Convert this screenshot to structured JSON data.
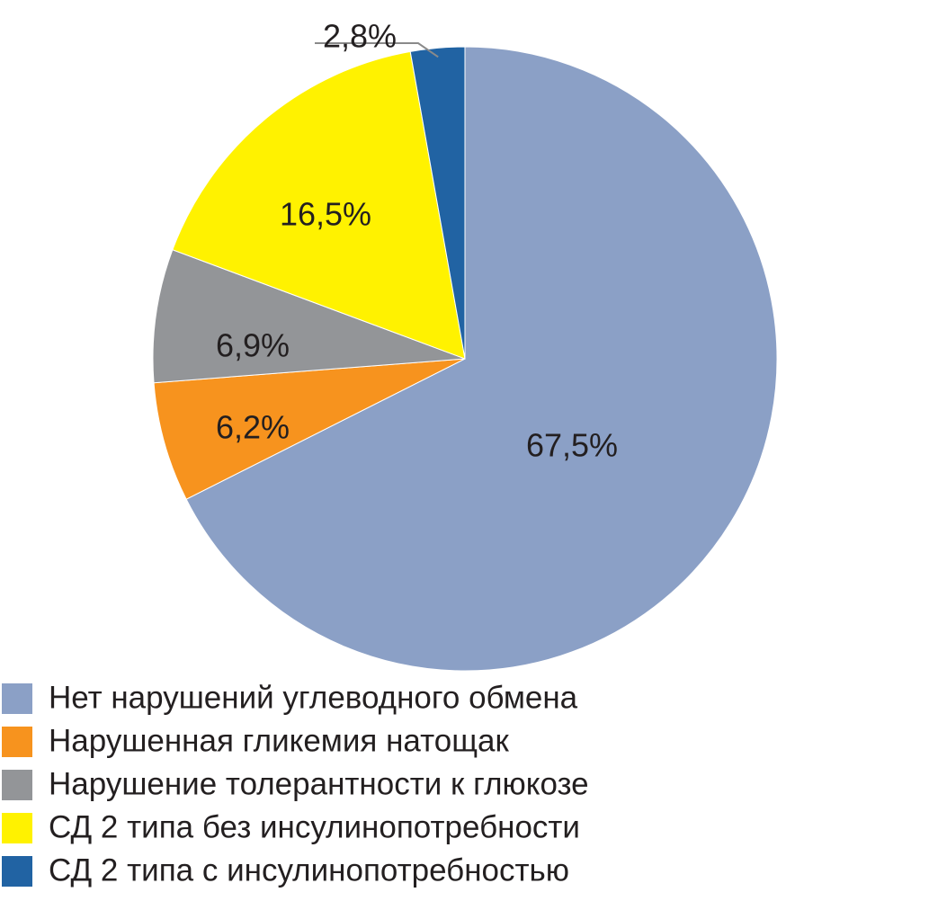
{
  "chart_data": {
    "type": "pie",
    "title": "",
    "start_angle_deg": 0,
    "direction": "clockwise",
    "slices": [
      {
        "label": "Нет нарушений углеводного обмена",
        "value": 67.5,
        "value_label": "67,5%",
        "color": "#8BA0C6"
      },
      {
        "label": "Нарушенная гликемия натощак",
        "value": 6.2,
        "value_label": "6,2%",
        "color": "#F7931E"
      },
      {
        "label": "Нарушение толерантности к глюкозе",
        "value": 6.9,
        "value_label": "6,9%",
        "color": "#939598"
      },
      {
        "label": "СД 2 типа без инсулинопотребности",
        "value": 16.5,
        "value_label": "16,5%",
        "color": "#FFF200"
      },
      {
        "label": "СД 2 типа с инсулинопотребностью",
        "value": 2.8,
        "value_label": "2,8%",
        "color": "#2163A3"
      }
    ],
    "legend": {
      "position": "bottom-left",
      "entries": [
        "Нет нарушений углеводного обмена",
        "Нарушенная гликемия натощак",
        "Нарушение толерантности к глюкозе",
        "СД 2 типа без инсулинопотребности",
        "СД 2 типа с инсулинопотребностью"
      ]
    }
  }
}
